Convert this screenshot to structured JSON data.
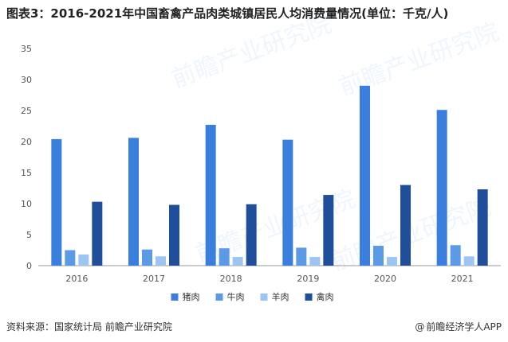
{
  "title": "图表3：2016-2021年中国畜禽产品肉类城镇居民人均消费量情况(单位：千克/人)",
  "source": "资料来源：国家统计局 前瞻产业研究院",
  "brand": "前瞻经济学人APP",
  "brand_icon": "at-icon",
  "chart_data": {
    "type": "bar",
    "categories": [
      "2016",
      "2017",
      "2018",
      "2019",
      "2020",
      "2021"
    ],
    "series": [
      {
        "name": "猪肉",
        "color": "#3a7fde",
        "values": [
          20.4,
          20.6,
          22.7,
          20.3,
          29.0,
          25.1
        ]
      },
      {
        "name": "牛肉",
        "color": "#5b9be6",
        "values": [
          2.5,
          2.6,
          2.8,
          2.9,
          3.2,
          3.3
        ]
      },
      {
        "name": "羊肉",
        "color": "#9cc5f1",
        "values": [
          1.8,
          1.5,
          1.4,
          1.4,
          1.4,
          1.5
        ]
      },
      {
        "name": "禽肉",
        "color": "#1f4e9b",
        "values": [
          10.3,
          9.8,
          9.9,
          11.4,
          13.0,
          12.3
        ]
      }
    ],
    "yticks": [
      "0",
      "5",
      "10",
      "15",
      "20",
      "25",
      "30",
      "35"
    ],
    "ylim": [
      0,
      35
    ],
    "xlabel": "",
    "ylabel": "",
    "legend_position": "bottom-center",
    "grid": false
  }
}
